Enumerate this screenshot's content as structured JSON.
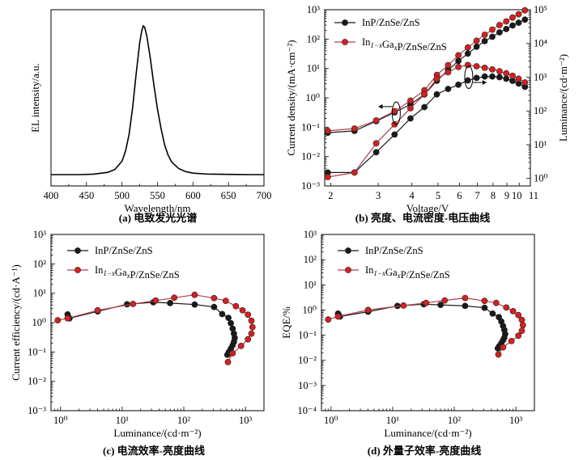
{
  "colors": {
    "black_series": "#1a1a1a",
    "red_series": "#d62020",
    "red_line": "#b04050"
  },
  "captions": {
    "a": "(a) 电致发光光谱",
    "b": "(b) 亮度、电流密度-电压曲线",
    "c": "(c) 电流效率-亮度曲线",
    "d": "(d) 外量子效率-亮度曲线"
  },
  "legend": {
    "series1": "InP/ZnSe/ZnS",
    "series2_pre": "In",
    "series2_sub1": "1−x",
    "series2_mid": "Ga",
    "series2_sub2": "x",
    "series2_post": "P/ZnSe/ZnS"
  },
  "chart_data": [
    {
      "id": "a",
      "type": "line",
      "xlabel": "Wavelength/nm",
      "ylabel": "EL intensity/a.u.",
      "xlim": [
        400,
        700
      ],
      "xticks": [
        400,
        450,
        500,
        550,
        600,
        650,
        700
      ],
      "series": [
        {
          "x": [
            400,
            420,
            440,
            460,
            480,
            490,
            500,
            505,
            510,
            515,
            520,
            525,
            528,
            530,
            532,
            535,
            540,
            545,
            550,
            555,
            560,
            565,
            570,
            580,
            590,
            600,
            620,
            640,
            660,
            680,
            700
          ],
          "y": [
            0,
            0,
            0,
            0.003,
            0.015,
            0.035,
            0.09,
            0.16,
            0.27,
            0.45,
            0.68,
            0.89,
            0.97,
            1.0,
            0.99,
            0.93,
            0.78,
            0.6,
            0.44,
            0.31,
            0.2,
            0.13,
            0.085,
            0.04,
            0.02,
            0.01,
            0.004,
            0.002,
            0.001,
            0,
            0
          ]
        }
      ]
    },
    {
      "id": "b",
      "type": "line",
      "xlabel": "Voltage/V",
      "ylabel": "Current density/(mA·cm⁻²)",
      "y2label": "Luminance/(cd·m⁻²)",
      "xscale": "log",
      "yscale": "log",
      "y2scale": "log",
      "xlim": [
        1.9,
        11
      ],
      "ylim": [
        0.001,
        1000
      ],
      "y2lim": [
        0.6,
        100000
      ],
      "xticks": [
        2,
        3,
        4,
        5,
        6,
        7,
        8,
        9,
        10,
        11
      ],
      "xticklabels": [
        "2",
        "3",
        "4",
        "5",
        "6",
        "7",
        "8",
        "9",
        "10",
        "11"
      ],
      "yticklabels": [
        "10⁻³",
        "10⁻²",
        "10⁻¹",
        "10⁰",
        "10¹",
        "10²",
        "10³"
      ],
      "y2ticklabels": [
        "10⁰",
        "10¹",
        "10²",
        "10³",
        "10⁴",
        "10⁵"
      ],
      "series": [
        {
          "name": "InP/ZnSe/ZnS",
          "axis": "left",
          "kind": "current_density",
          "x": [
            1.95,
            2.45,
            2.95,
            3.45,
            3.95,
            4.45,
            4.95,
            5.45,
            5.95,
            6.45,
            6.95,
            7.45,
            7.95,
            8.45,
            8.95,
            9.45,
            9.95,
            10.5
          ],
          "y": [
            0.065,
            0.075,
            0.16,
            0.32,
            0.6,
            1.3,
            3.8,
            8.8,
            18,
            32,
            55,
            85,
            120,
            170,
            220,
            290,
            360,
            460
          ]
        },
        {
          "name": "In1−xGaxP/ZnSe/ZnS",
          "axis": "left",
          "kind": "current_density",
          "x": [
            1.95,
            2.45,
            2.95,
            3.45,
            3.95,
            4.45,
            4.95,
            5.45,
            5.95,
            6.45,
            6.95,
            7.45,
            7.95,
            8.45,
            8.95,
            9.45,
            9.95,
            10.5
          ],
          "y": [
            0.075,
            0.09,
            0.17,
            0.35,
            0.8,
            1.8,
            6,
            13,
            28,
            52,
            88,
            140,
            210,
            300,
            400,
            540,
            700,
            950
          ]
        },
        {
          "name": "InP/ZnSe/ZnS",
          "axis": "right",
          "kind": "luminance",
          "x": [
            1.95,
            2.45,
            2.95,
            3.45,
            3.95,
            4.45,
            4.95,
            5.45,
            5.95,
            6.45,
            6.95,
            7.45,
            7.95,
            8.45,
            8.95,
            9.45,
            9.95,
            10.5
          ],
          "y": [
            1.5,
            1.5,
            6,
            20,
            60,
            130,
            310,
            450,
            600,
            800,
            950,
            1050,
            1050,
            1000,
            900,
            780,
            650,
            520
          ]
        },
        {
          "name": "In1−xGaxP/ZnSe/ZnS",
          "axis": "right",
          "kind": "luminance",
          "x": [
            1.95,
            2.45,
            2.95,
            3.45,
            3.95,
            4.45,
            4.95,
            5.45,
            5.95,
            6.45,
            6.95,
            7.45,
            7.95,
            8.45,
            8.95,
            9.45,
            9.95,
            10.5
          ],
          "y": [
            1.1,
            1.5,
            11,
            40,
            120,
            310,
            900,
            1400,
            2000,
            2300,
            2100,
            1900,
            1700,
            1500,
            1300,
            1100,
            900,
            700
          ]
        }
      ]
    },
    {
      "id": "c",
      "type": "line",
      "xlabel": "Luminance/(cd·m⁻²)",
      "ylabel": "Current efficiency/(cd·A⁻¹)",
      "xscale": "log",
      "yscale": "log",
      "xlim": [
        0.7,
        2000
      ],
      "ylim": [
        0.001,
        1000
      ],
      "xticklabels": [
        "10⁰",
        "10¹",
        "10²",
        "10³"
      ],
      "yticklabels": [
        "10⁻³",
        "10⁻²",
        "10⁻¹",
        "10⁰",
        "10¹",
        "10²",
        "10³"
      ],
      "series": [
        {
          "name": "InP/ZnSe/ZnS",
          "x": [
            1.3,
            1.4,
            4,
            12,
            32,
            60,
            150,
            310,
            420,
            530,
            580,
            620,
            650,
            670,
            650,
            620,
            580,
            540,
            510
          ],
          "y": [
            1.9,
            1.4,
            2.4,
            4.2,
            4.9,
            4.6,
            4.1,
            3.4,
            1.95,
            1.45,
            0.95,
            0.62,
            0.42,
            0.3,
            0.22,
            0.17,
            0.13,
            0.1,
            0.08
          ]
        },
        {
          "name": "In1−xGaxP/ZnSe/ZnS",
          "x": [
            0.9,
            1.3,
            4,
            15,
            35,
            70,
            150,
            310,
            480,
            700,
            900,
            1100,
            1250,
            1300,
            1250,
            1100,
            850,
            620,
            520
          ],
          "y": [
            1.2,
            1.4,
            2.6,
            4.3,
            5.6,
            7,
            8.8,
            6.8,
            5.5,
            3.6,
            2.6,
            1.85,
            1.15,
            0.7,
            0.42,
            0.27,
            0.16,
            0.09,
            0.045
          ]
        }
      ]
    },
    {
      "id": "d",
      "type": "line",
      "xlabel": "Luminance/(cd·m⁻²)",
      "ylabel": "EQE/%",
      "xscale": "log",
      "yscale": "log",
      "xlim": [
        0.7,
        2000
      ],
      "ylim": [
        0.0001,
        1000
      ],
      "xticklabels": [
        "10⁰",
        "10¹",
        "10²",
        "10³"
      ],
      "yticklabels": [
        "10⁻⁴",
        "10⁻³",
        "10⁻²",
        "10⁻¹",
        "10⁰",
        "10¹",
        "10²",
        "10³"
      ],
      "series": [
        {
          "name": "InP/ZnSe/ZnS",
          "x": [
            1.3,
            1.4,
            4,
            12,
            32,
            60,
            150,
            310,
            420,
            530,
            580,
            620,
            650,
            670,
            650,
            620,
            580,
            540,
            510
          ],
          "y": [
            0.72,
            0.55,
            0.85,
            1.45,
            1.7,
            1.6,
            1.45,
            1.22,
            0.72,
            0.52,
            0.35,
            0.23,
            0.16,
            0.11,
            0.08,
            0.063,
            0.048,
            0.037,
            0.03
          ]
        },
        {
          "name": "In1−xGaxP/ZnSe/ZnS",
          "x": [
            0.9,
            1.3,
            4,
            15,
            35,
            70,
            150,
            310,
            480,
            700,
            900,
            1100,
            1250,
            1300,
            1250,
            1100,
            850,
            620,
            520
          ],
          "y": [
            0.42,
            0.55,
            1.0,
            1.5,
            1.9,
            2.4,
            3.0,
            2.3,
            1.9,
            1.25,
            0.9,
            0.63,
            0.4,
            0.25,
            0.15,
            0.095,
            0.058,
            0.033,
            0.017
          ]
        }
      ]
    }
  ]
}
